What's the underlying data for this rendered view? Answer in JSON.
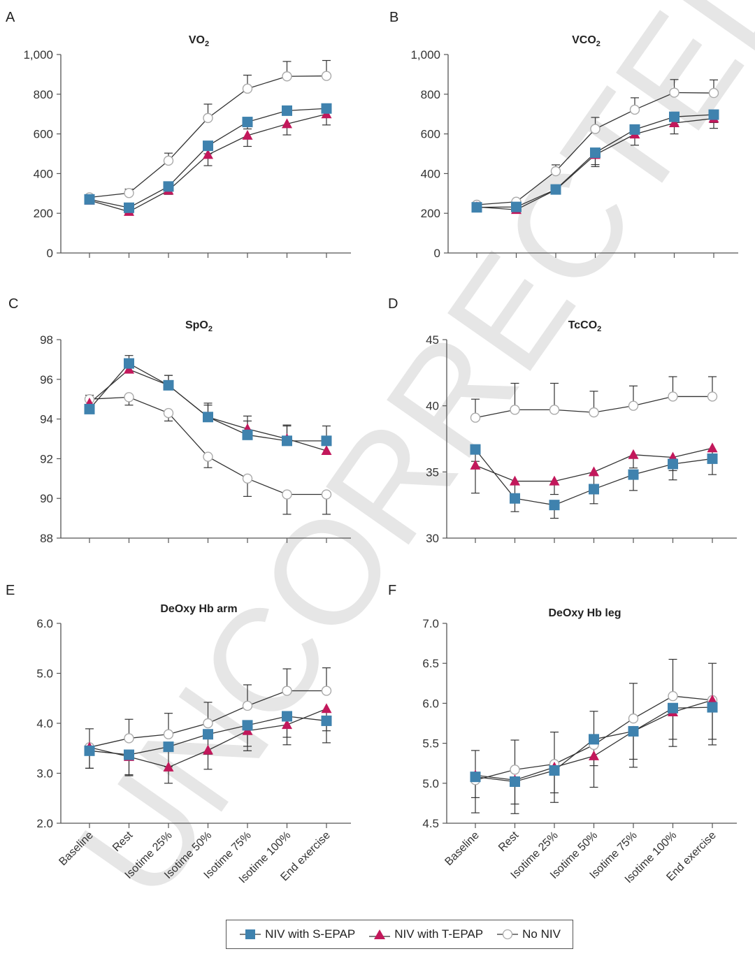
{
  "colors": {
    "s_epap": "#3f82ae",
    "t_epap": "#c2185b",
    "no_niv": "#aaaaaa",
    "line": "#333333",
    "axis": "#555555",
    "watermark": "#e6e6e6"
  },
  "watermark_text": "UNCORRECTED PROOF",
  "legend": {
    "items": [
      {
        "label": "NIV with S-EPAP",
        "marker": "square"
      },
      {
        "label": "NIV with T-EPAP",
        "marker": "triangle"
      },
      {
        "label": "No NIV",
        "marker": "circle-open"
      }
    ]
  },
  "chart_data": [
    {
      "panel": "A",
      "type": "line",
      "title": "VO",
      "title_sub": "2",
      "categories": [
        "Baseline",
        "Rest",
        "Isotime 25%",
        "Isotime 50%",
        "Isotime 75%",
        "Isotime 100%",
        "End exercise"
      ],
      "show_xtick_labels": false,
      "ylim": [
        0,
        1000
      ],
      "yticks": [
        0,
        200,
        400,
        600,
        800,
        1000
      ],
      "ytick_labels": [
        "0",
        "200",
        "400",
        "600",
        "800",
        "1,000"
      ],
      "series": [
        {
          "name": "NIV with S-EPAP",
          "values": [
            270,
            228,
            335,
            540,
            660,
            717,
            728
          ],
          "err": [
            8,
            15,
            15,
            40,
            35,
            0,
            0
          ],
          "err_dir": "down"
        },
        {
          "name": "NIV with T-EPAP",
          "values": [
            265,
            208,
            315,
            495,
            592,
            650,
            700
          ],
          "err": [
            8,
            8,
            20,
            55,
            55,
            55,
            55
          ],
          "err_dir": "down"
        },
        {
          "name": "No NIV",
          "values": [
            280,
            302,
            465,
            680,
            828,
            890,
            892
          ],
          "err": [
            0,
            20,
            38,
            70,
            68,
            75,
            78
          ],
          "err_dir": "up"
        }
      ]
    },
    {
      "panel": "B",
      "type": "line",
      "title": "VCO",
      "title_sub": "2",
      "categories": [
        "Baseline",
        "Rest",
        "Isotime 25%",
        "Isotime 50%",
        "Isotime 75%",
        "Isotime 100%",
        "End exercise"
      ],
      "show_xtick_labels": false,
      "ylim": [
        0,
        1000
      ],
      "yticks": [
        0,
        200,
        400,
        600,
        800,
        1000
      ],
      "ytick_labels": [
        "0",
        "200",
        "400",
        "600",
        "800",
        "1,000"
      ],
      "series": [
        {
          "name": "NIV with S-EPAP",
          "values": [
            230,
            232,
            320,
            505,
            622,
            686,
            697
          ],
          "err": [
            0,
            0,
            10,
            60,
            40,
            40,
            40
          ],
          "err_dir": "down"
        },
        {
          "name": "NIV with T-EPAP",
          "values": [
            232,
            218,
            318,
            495,
            598,
            655,
            678
          ],
          "err": [
            0,
            0,
            10,
            60,
            55,
            55,
            50
          ],
          "err_dir": "down"
        },
        {
          "name": "No NIV",
          "values": [
            243,
            258,
            412,
            625,
            722,
            808,
            806
          ],
          "err": [
            0,
            10,
            32,
            58,
            60,
            66,
            66
          ],
          "err_dir": "up"
        }
      ]
    },
    {
      "panel": "C",
      "type": "line",
      "title": "SpO",
      "title_sub": "2",
      "categories": [
        "Baseline",
        "Rest",
        "Isotime 25%",
        "Isotime 50%",
        "Isotime 75%",
        "Isotime 100%",
        "End exercise"
      ],
      "show_xtick_labels": false,
      "ylim": [
        88,
        98
      ],
      "yticks": [
        88,
        90,
        92,
        94,
        96,
        98
      ],
      "ytick_labels": [
        "88",
        "90",
        "92",
        "94",
        "96",
        "98"
      ],
      "series": [
        {
          "name": "NIV with S-EPAP",
          "values": [
            94.5,
            96.8,
            95.7,
            94.1,
            93.2,
            92.9,
            92.9
          ],
          "err": [
            0.4,
            0.4,
            0.5,
            0.6,
            0.7,
            0.8,
            0.75
          ],
          "err_dir": "up"
        },
        {
          "name": "NIV with T-EPAP",
          "values": [
            94.8,
            96.5,
            95.7,
            94.1,
            93.5,
            93.0,
            92.4
          ],
          "err": [
            0.4,
            0.4,
            0.5,
            0.7,
            0.65,
            0.65,
            0.6
          ],
          "err_dir": "up"
        },
        {
          "name": "No NIV",
          "values": [
            95.0,
            95.1,
            94.3,
            92.1,
            91.0,
            90.2,
            90.2
          ],
          "err": [
            0.3,
            0.4,
            0.4,
            0.55,
            0.9,
            1.0,
            1.0
          ],
          "err_dir": "down"
        }
      ]
    },
    {
      "panel": "D",
      "type": "line",
      "title": "TcCO",
      "title_sub": "2",
      "categories": [
        "Baseline",
        "Rest",
        "Isotime 25%",
        "Isotime 50%",
        "Isotime 75%",
        "Isotime 100%",
        "End exercise"
      ],
      "show_xtick_labels": false,
      "ylim": [
        30,
        45
      ],
      "yticks": [
        30,
        35,
        40,
        45
      ],
      "ytick_labels": [
        "30",
        "35",
        "40",
        "45"
      ],
      "series": [
        {
          "name": "NIV with S-EPAP",
          "values": [
            36.7,
            33.0,
            32.5,
            33.7,
            34.8,
            35.6,
            36.0
          ],
          "err": [
            0.9,
            1.0,
            1.0,
            1.1,
            1.2,
            1.2,
            1.2
          ],
          "err_dir": "down"
        },
        {
          "name": "NIV with T-EPAP",
          "values": [
            35.5,
            34.3,
            34.3,
            35.0,
            36.3,
            36.1,
            36.8
          ],
          "err": [
            2.1,
            1.0,
            1.0,
            1.0,
            1.0,
            1.0,
            1.0
          ],
          "err_dir": "down"
        },
        {
          "name": "No NIV",
          "values": [
            39.1,
            39.7,
            39.7,
            39.5,
            40.0,
            40.7,
            40.7
          ],
          "err": [
            1.4,
            2.0,
            2.0,
            1.6,
            1.5,
            1.5,
            1.5
          ],
          "err_dir": "up"
        }
      ]
    },
    {
      "panel": "E",
      "type": "line",
      "title": "DeOxy Hb arm",
      "title_sub": "",
      "categories": [
        "Baseline",
        "Rest",
        "Isotime 25%",
        "Isotime 50%",
        "Isotime 75%",
        "Isotime 100%",
        "End exercise"
      ],
      "show_xtick_labels": true,
      "ylim": [
        2.0,
        6.0
      ],
      "yticks": [
        2.0,
        3.0,
        4.0,
        5.0,
        6.0
      ],
      "ytick_labels": [
        "2.0",
        "3.0",
        "4.0",
        "5.0",
        "6.0"
      ],
      "series": [
        {
          "name": "NIV with S-EPAP",
          "values": [
            3.45,
            3.37,
            3.53,
            3.78,
            3.96,
            4.14,
            4.05
          ],
          "err": [
            0.35,
            0.4,
            0.4,
            0.4,
            0.42,
            0.42,
            0.2
          ],
          "err_dir": "down"
        },
        {
          "name": "NIV with T-EPAP",
          "values": [
            3.52,
            3.33,
            3.12,
            3.46,
            3.85,
            3.97,
            4.29
          ],
          "err": [
            0.42,
            0.38,
            0.32,
            0.38,
            0.4,
            0.4,
            0.68
          ],
          "err_dir": "down"
        },
        {
          "name": "No NIV",
          "values": [
            3.52,
            3.7,
            3.78,
            4.0,
            4.35,
            4.65,
            4.65
          ],
          "err": [
            0.37,
            0.38,
            0.42,
            0.42,
            0.42,
            0.44,
            0.46
          ],
          "err_dir": "up"
        }
      ]
    },
    {
      "panel": "F",
      "type": "line",
      "title": "DeOxy Hb leg",
      "title_sub": "",
      "categories": [
        "Baseline",
        "Rest",
        "Isotime 25%",
        "Isotime 50%",
        "Isotime 75%",
        "Isotime 100%",
        "End exercise"
      ],
      "show_xtick_labels": true,
      "ylim": [
        4.5,
        7.0
      ],
      "yticks": [
        4.5,
        5.0,
        5.5,
        6.0,
        6.5,
        7.0
      ],
      "ytick_labels": [
        "4.5",
        "5.0",
        "5.5",
        "6.0",
        "6.5",
        "7.0"
      ],
      "series": [
        {
          "name": "NIV with S-EPAP",
          "values": [
            5.08,
            5.02,
            5.16,
            5.55,
            5.65,
            5.94,
            5.95
          ],
          "err": [
            0.45,
            0.4,
            0.4,
            0.6,
            0.45,
            0.48,
            0.47
          ],
          "err_dir": "down"
        },
        {
          "name": "NIV with T-EPAP",
          "values": [
            5.1,
            5.04,
            5.2,
            5.34,
            5.65,
            5.89,
            6.04
          ],
          "err": [
            0.28,
            0.3,
            0.32,
            0.12,
            0.35,
            0.34,
            0.49
          ],
          "err_dir": "down"
        },
        {
          "name": "No NIV",
          "values": [
            5.04,
            5.17,
            5.24,
            5.48,
            5.81,
            6.09,
            6.04
          ],
          "err": [
            0.37,
            0.37,
            0.4,
            0.42,
            0.44,
            0.46,
            0.46
          ],
          "err_dir": "up"
        }
      ]
    }
  ]
}
